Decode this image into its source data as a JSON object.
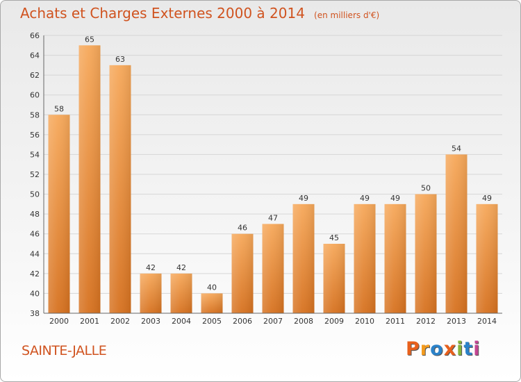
{
  "header": {
    "title": "Achats et Charges Externes 2000 à 2014",
    "subtitle": "(en milliers d'€)"
  },
  "footer": {
    "location": "SAINTE-JALLE",
    "brand": "Proxiti",
    "brand_colors": [
      "#e8601c",
      "#f39b1e",
      "#2b82c9",
      "#e8601c",
      "#86b43a",
      "#2b82c9",
      "#c24592"
    ]
  },
  "colors": {
    "title": "#d0531f",
    "bar_top": "#f6a85a",
    "bar_bottom": "#d6711f",
    "grid": "#d6d6d6",
    "axis_text": "#333333"
  },
  "chart_data": {
    "type": "bar",
    "title": "Achats et Charges Externes 2000 à 2014",
    "subtitle": "(en milliers d'€)",
    "xlabel": "",
    "ylabel": "",
    "categories": [
      "2000",
      "2001",
      "2002",
      "2003",
      "2004",
      "2005",
      "2006",
      "2007",
      "2008",
      "2009",
      "2010",
      "2011",
      "2012",
      "2013",
      "2014"
    ],
    "values": [
      58,
      65,
      63,
      42,
      42,
      40,
      46,
      47,
      49,
      45,
      49,
      49,
      50,
      54,
      49
    ],
    "ylim": [
      38,
      66
    ],
    "yticks": [
      38,
      40,
      42,
      44,
      46,
      48,
      50,
      52,
      54,
      56,
      58,
      60,
      62,
      64,
      66
    ],
    "grid": true,
    "legend": "none"
  }
}
